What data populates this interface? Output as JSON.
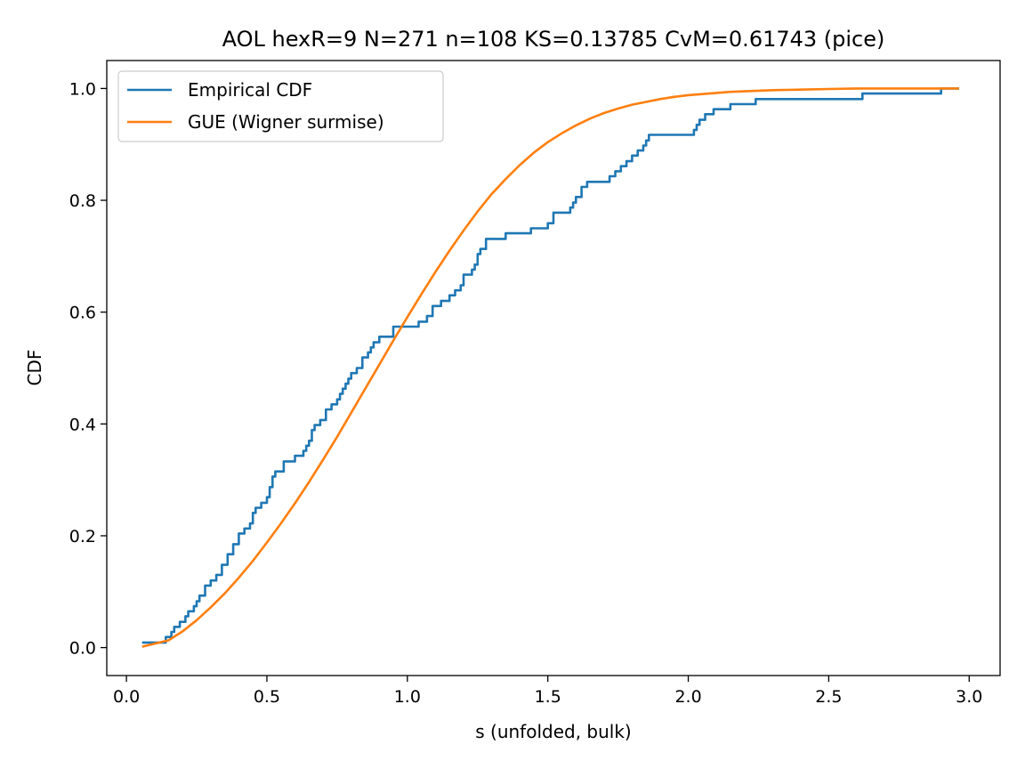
{
  "chart_data": {
    "type": "line",
    "title": "AOL hexR=9  N=271  n=108  KS=0.13785  CvM=0.61743  (pice)",
    "xlabel": "s (unfolded, bulk)",
    "ylabel": "CDF",
    "xlim": [
      -0.07,
      3.11
    ],
    "ylim": [
      -0.05,
      1.05
    ],
    "x_ticks": [
      0.0,
      0.5,
      1.0,
      1.5,
      2.0,
      2.5,
      3.0
    ],
    "x_tick_labels": [
      "0.0",
      "0.5",
      "1.0",
      "1.5",
      "2.0",
      "2.5",
      "3.0"
    ],
    "y_ticks": [
      0.0,
      0.2,
      0.4,
      0.6,
      0.8,
      1.0
    ],
    "y_tick_labels": [
      "0.0",
      "0.2",
      "0.4",
      "0.6",
      "0.8",
      "1.0"
    ],
    "grid": false,
    "legend_position": "upper-left",
    "series": [
      {
        "name": "Empirical CDF",
        "color": "#1f77b4",
        "step": true,
        "x": [
          0.06,
          0.14,
          0.16,
          0.17,
          0.19,
          0.21,
          0.22,
          0.24,
          0.25,
          0.26,
          0.28,
          0.3,
          0.32,
          0.34,
          0.36,
          0.38,
          0.4,
          0.42,
          0.44,
          0.45,
          0.46,
          0.48,
          0.5,
          0.51,
          0.52,
          0.53,
          0.56,
          0.6,
          0.63,
          0.64,
          0.65,
          0.66,
          0.67,
          0.69,
          0.71,
          0.73,
          0.75,
          0.76,
          0.77,
          0.78,
          0.79,
          0.8,
          0.82,
          0.84,
          0.86,
          0.87,
          0.88,
          0.9,
          0.95,
          1.04,
          1.07,
          1.09,
          1.12,
          1.15,
          1.17,
          1.19,
          1.2,
          1.23,
          1.24,
          1.25,
          1.26,
          1.28,
          1.35,
          1.44,
          1.5,
          1.52,
          1.58,
          1.59,
          1.6,
          1.62,
          1.64,
          1.72,
          1.74,
          1.76,
          1.78,
          1.8,
          1.82,
          1.84,
          1.85,
          1.86,
          2.02,
          2.03,
          2.04,
          2.06,
          2.09,
          2.15,
          2.24,
          2.62,
          2.9,
          2.96
        ],
        "y": [
          0.009,
          0.019,
          0.028,
          0.037,
          0.046,
          0.056,
          0.065,
          0.074,
          0.083,
          0.093,
          0.111,
          0.12,
          0.13,
          0.148,
          0.167,
          0.185,
          0.204,
          0.213,
          0.222,
          0.241,
          0.25,
          0.259,
          0.269,
          0.287,
          0.306,
          0.315,
          0.333,
          0.343,
          0.352,
          0.361,
          0.37,
          0.389,
          0.398,
          0.407,
          0.426,
          0.435,
          0.444,
          0.454,
          0.463,
          0.472,
          0.481,
          0.491,
          0.5,
          0.519,
          0.528,
          0.537,
          0.546,
          0.556,
          0.574,
          0.583,
          0.593,
          0.611,
          0.62,
          0.63,
          0.639,
          0.648,
          0.667,
          0.676,
          0.685,
          0.704,
          0.713,
          0.731,
          0.741,
          0.75,
          0.759,
          0.778,
          0.787,
          0.796,
          0.806,
          0.824,
          0.833,
          0.843,
          0.852,
          0.861,
          0.87,
          0.88,
          0.889,
          0.898,
          0.907,
          0.917,
          0.926,
          0.935,
          0.944,
          0.954,
          0.963,
          0.972,
          0.981,
          0.991,
          1.0,
          1.0
        ]
      },
      {
        "name": "GUE (Wigner surmise)",
        "color": "#ff7f0e",
        "step": false,
        "x": [
          0.06,
          0.15,
          0.2,
          0.25,
          0.3,
          0.35,
          0.4,
          0.45,
          0.5,
          0.55,
          0.6,
          0.65,
          0.7,
          0.75,
          0.8,
          0.85,
          0.9,
          0.95,
          1.0,
          1.05,
          1.1,
          1.15,
          1.2,
          1.25,
          1.3,
          1.35,
          1.4,
          1.45,
          1.5,
          1.55,
          1.6,
          1.65,
          1.7,
          1.75,
          1.8,
          1.85,
          1.9,
          1.95,
          2.0,
          2.05,
          2.1,
          2.15,
          2.2,
          2.25,
          2.3,
          2.4,
          2.5,
          2.6,
          2.7,
          2.8,
          2.96
        ],
        "y": [
          0.002,
          0.013,
          0.029,
          0.049,
          0.072,
          0.097,
          0.125,
          0.155,
          0.188,
          0.222,
          0.258,
          0.296,
          0.336,
          0.377,
          0.42,
          0.463,
          0.506,
          0.549,
          0.591,
          0.632,
          0.672,
          0.71,
          0.746,
          0.78,
          0.811,
          0.838,
          0.863,
          0.885,
          0.904,
          0.92,
          0.934,
          0.946,
          0.956,
          0.964,
          0.971,
          0.976,
          0.981,
          0.985,
          0.988,
          0.99,
          0.992,
          0.994,
          0.995,
          0.996,
          0.997,
          0.998,
          0.999,
          1.0,
          1.0,
          1.0,
          1.0
        ]
      }
    ]
  }
}
